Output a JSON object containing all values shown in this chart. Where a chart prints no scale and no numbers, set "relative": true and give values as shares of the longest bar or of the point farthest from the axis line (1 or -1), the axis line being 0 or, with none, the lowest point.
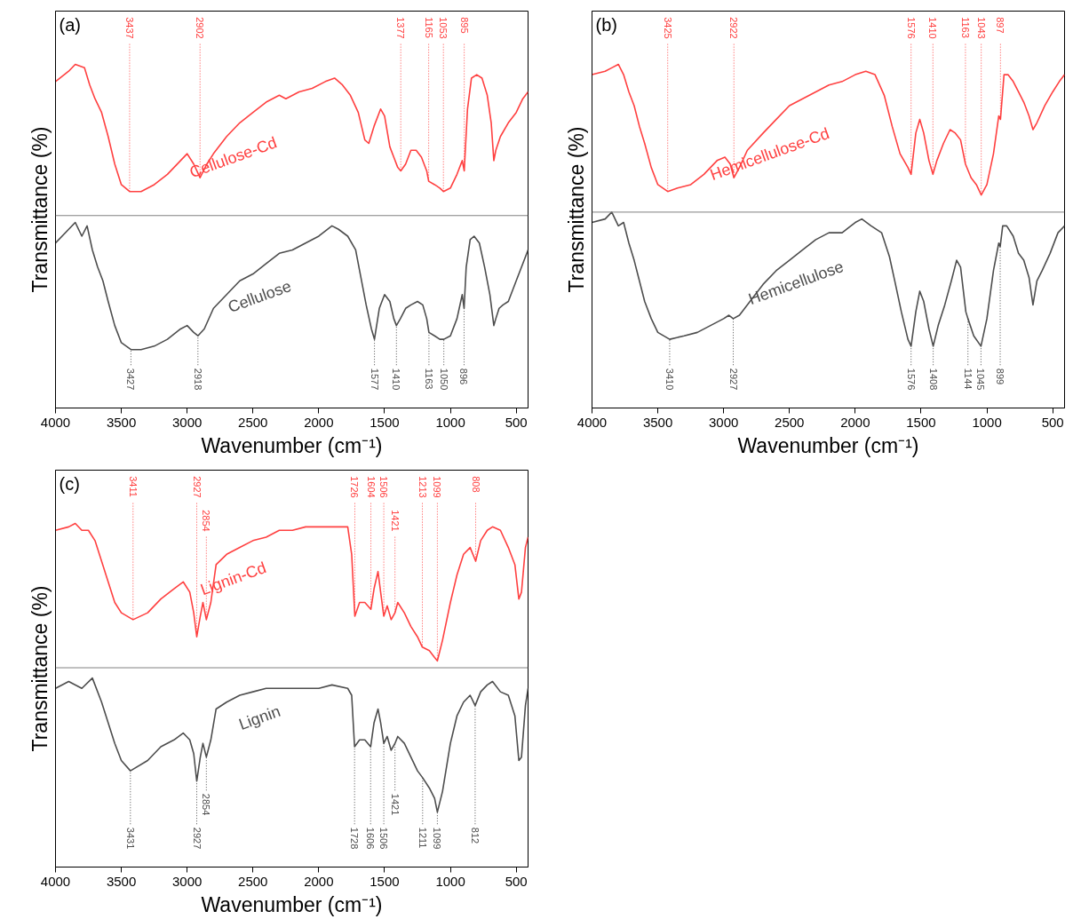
{
  "chart_data": [
    {
      "type": "line",
      "relative": true,
      "title": "(a)",
      "xlabel": "Wavenumber (cm⁻¹)",
      "ylabel": "Transmittance (%)",
      "xlim": [
        4000,
        410
      ],
      "xticks": [
        4000,
        3500,
        3000,
        2500,
        2000,
        1500,
        1000,
        500
      ],
      "series": [
        {
          "name": "Cellulose-Cd",
          "color": "#ff4040",
          "x": [
            4000,
            3900,
            3850,
            3780,
            3740,
            3700,
            3650,
            3600,
            3550,
            3500,
            3437,
            3350,
            3250,
            3150,
            3050,
            3000,
            2950,
            2902,
            2850,
            2800,
            2700,
            2600,
            2500,
            2400,
            2300,
            2250,
            2150,
            2050,
            1950,
            1880,
            1820,
            1760,
            1700,
            1650,
            1620,
            1580,
            1530,
            1500,
            1460,
            1430,
            1400,
            1377,
            1340,
            1300,
            1260,
            1220,
            1180,
            1165,
            1120,
            1080,
            1053,
            1000,
            950,
            910,
            895,
            870,
            840,
            800,
            760,
            720,
            690,
            670,
            655,
            620,
            560,
            500,
            450,
            410
          ],
          "values": [
            0.95,
            0.98,
            1.0,
            0.99,
            0.94,
            0.9,
            0.86,
            0.79,
            0.71,
            0.65,
            0.63,
            0.63,
            0.65,
            0.68,
            0.72,
            0.74,
            0.71,
            0.67,
            0.71,
            0.74,
            0.79,
            0.83,
            0.86,
            0.89,
            0.91,
            0.9,
            0.92,
            0.93,
            0.95,
            0.96,
            0.94,
            0.91,
            0.86,
            0.78,
            0.77,
            0.82,
            0.87,
            0.85,
            0.76,
            0.73,
            0.7,
            0.69,
            0.71,
            0.75,
            0.75,
            0.73,
            0.69,
            0.66,
            0.65,
            0.64,
            0.63,
            0.64,
            0.68,
            0.72,
            0.69,
            0.87,
            0.96,
            0.97,
            0.96,
            0.91,
            0.83,
            0.72,
            0.75,
            0.79,
            0.83,
            0.86,
            0.9,
            0.92
          ]
        },
        {
          "name": "Cellulose",
          "color": "#4d4d4d",
          "x": [
            4000,
            3900,
            3850,
            3800,
            3760,
            3720,
            3680,
            3640,
            3600,
            3550,
            3500,
            3427,
            3350,
            3250,
            3150,
            3050,
            3000,
            2950,
            2918,
            2870,
            2800,
            2700,
            2600,
            2500,
            2400,
            2300,
            2200,
            2100,
            2000,
            1900,
            1850,
            1780,
            1720,
            1680,
            1640,
            1600,
            1577,
            1540,
            1500,
            1460,
            1430,
            1410,
            1380,
            1340,
            1300,
            1250,
            1210,
            1180,
            1163,
            1120,
            1080,
            1050,
            1000,
            950,
            910,
            896,
            880,
            850,
            820,
            780,
            740,
            700,
            670,
            655,
            630,
            600,
            560,
            500,
            450,
            410
          ],
          "values": [
            0.48,
            0.52,
            0.54,
            0.5,
            0.53,
            0.46,
            0.41,
            0.37,
            0.31,
            0.24,
            0.19,
            0.17,
            0.17,
            0.18,
            0.2,
            0.23,
            0.24,
            0.22,
            0.21,
            0.23,
            0.29,
            0.33,
            0.37,
            0.39,
            0.42,
            0.45,
            0.46,
            0.48,
            0.5,
            0.53,
            0.52,
            0.5,
            0.46,
            0.38,
            0.3,
            0.23,
            0.2,
            0.29,
            0.33,
            0.31,
            0.26,
            0.24,
            0.26,
            0.29,
            0.3,
            0.31,
            0.3,
            0.26,
            0.22,
            0.21,
            0.2,
            0.2,
            0.21,
            0.26,
            0.33,
            0.29,
            0.41,
            0.49,
            0.5,
            0.48,
            0.41,
            0.33,
            0.24,
            0.26,
            0.29,
            0.3,
            0.31,
            0.37,
            0.42,
            0.46
          ]
        }
      ],
      "ref_lines": [
        {
          "axis": "y",
          "value": 0.56,
          "color": "#808080"
        }
      ],
      "annotations": [
        {
          "text": "3437",
          "x": 3437,
          "y": 0.63
        },
        {
          "text": "2902",
          "x": 2902,
          "y": 0.67
        },
        {
          "text": "1377",
          "x": 1377,
          "y": 0.69
        },
        {
          "text": "1165",
          "x": 1165,
          "y": 0.66
        },
        {
          "text": "1053",
          "x": 1053,
          "y": 0.63
        },
        {
          "text": "895",
          "x": 895,
          "y": 0.69
        },
        {
          "text": "3427",
          "x": 3427,
          "y": 0.17
        },
        {
          "text": "2918",
          "x": 2918,
          "y": 0.21
        },
        {
          "text": "1577",
          "x": 1577,
          "y": 0.2
        },
        {
          "text": "1410",
          "x": 1410,
          "y": 0.24
        },
        {
          "text": "1163",
          "x": 1163,
          "y": 0.22
        },
        {
          "text": "1050",
          "x": 1050,
          "y": 0.2
        },
        {
          "text": "896",
          "x": 896,
          "y": 0.29
        }
      ]
    },
    {
      "type": "line",
      "relative": true,
      "title": "(b)",
      "xlabel": "Wavenumber (cm⁻¹)",
      "ylabel": "Transmittance (%)",
      "xlim": [
        4000,
        410
      ],
      "xticks": [
        4000,
        3500,
        3000,
        2500,
        2000,
        1500,
        1000,
        500
      ],
      "series": [
        {
          "name": "Hemicellulose-Cd",
          "color": "#ff4040",
          "x": [
            4000,
            3900,
            3850,
            3800,
            3760,
            3720,
            3680,
            3640,
            3600,
            3550,
            3500,
            3425,
            3350,
            3250,
            3150,
            3050,
            2990,
            2950,
            2922,
            2880,
            2820,
            2700,
            2600,
            2500,
            2400,
            2300,
            2200,
            2100,
            2000,
            1920,
            1850,
            1780,
            1720,
            1660,
            1600,
            1576,
            1540,
            1510,
            1480,
            1440,
            1410,
            1380,
            1330,
            1280,
            1240,
            1200,
            1163,
            1120,
            1080,
            1043,
            1000,
            950,
            910,
            897,
            870,
            840,
            800,
            760,
            720,
            680,
            650,
            620,
            560,
            500,
            450,
            410
          ],
          "values": [
            0.97,
            0.98,
            0.99,
            1.0,
            0.97,
            0.92,
            0.88,
            0.82,
            0.77,
            0.7,
            0.65,
            0.63,
            0.64,
            0.65,
            0.68,
            0.72,
            0.73,
            0.71,
            0.67,
            0.7,
            0.75,
            0.8,
            0.84,
            0.88,
            0.9,
            0.92,
            0.94,
            0.95,
            0.97,
            0.98,
            0.97,
            0.91,
            0.82,
            0.74,
            0.7,
            0.68,
            0.8,
            0.84,
            0.8,
            0.72,
            0.68,
            0.72,
            0.77,
            0.81,
            0.8,
            0.78,
            0.71,
            0.67,
            0.65,
            0.62,
            0.65,
            0.74,
            0.85,
            0.84,
            0.97,
            0.97,
            0.95,
            0.92,
            0.89,
            0.85,
            0.81,
            0.83,
            0.88,
            0.92,
            0.95,
            0.97
          ]
        },
        {
          "name": "Hemicellulose",
          "color": "#4d4d4d",
          "x": [
            4000,
            3900,
            3850,
            3800,
            3760,
            3720,
            3680,
            3640,
            3600,
            3550,
            3500,
            3410,
            3300,
            3200,
            3100,
            3000,
            2960,
            2927,
            2880,
            2800,
            2700,
            2600,
            2500,
            2400,
            2300,
            2200,
            2100,
            2000,
            1950,
            1880,
            1800,
            1740,
            1700,
            1650,
            1600,
            1576,
            1540,
            1510,
            1480,
            1440,
            1408,
            1370,
            1320,
            1270,
            1230,
            1200,
            1160,
            1144,
            1100,
            1045,
            1000,
            950,
            910,
            899,
            880,
            850,
            800,
            760,
            720,
            680,
            650,
            620,
            580,
            520,
            460,
            410
          ],
          "values": [
            0.54,
            0.55,
            0.57,
            0.53,
            0.54,
            0.48,
            0.43,
            0.37,
            0.31,
            0.26,
            0.22,
            0.2,
            0.21,
            0.22,
            0.24,
            0.26,
            0.27,
            0.26,
            0.27,
            0.31,
            0.36,
            0.4,
            0.43,
            0.46,
            0.49,
            0.51,
            0.51,
            0.54,
            0.55,
            0.53,
            0.51,
            0.44,
            0.37,
            0.28,
            0.2,
            0.18,
            0.28,
            0.34,
            0.31,
            0.23,
            0.18,
            0.24,
            0.3,
            0.37,
            0.43,
            0.41,
            0.28,
            0.26,
            0.21,
            0.18,
            0.26,
            0.4,
            0.48,
            0.47,
            0.53,
            0.53,
            0.5,
            0.45,
            0.43,
            0.38,
            0.3,
            0.37,
            0.4,
            0.45,
            0.51,
            0.53
          ]
        }
      ],
      "ref_lines": [
        {
          "axis": "y",
          "value": 0.57,
          "color": "#808080"
        }
      ],
      "annotations": [
        {
          "text": "3425",
          "x": 3425,
          "y": 0.63
        },
        {
          "text": "2922",
          "x": 2922,
          "y": 0.67
        },
        {
          "text": "1576",
          "x": 1576,
          "y": 0.68
        },
        {
          "text": "1410",
          "x": 1410,
          "y": 0.68
        },
        {
          "text": "1163",
          "x": 1163,
          "y": 0.71
        },
        {
          "text": "1043",
          "x": 1043,
          "y": 0.62
        },
        {
          "text": "897",
          "x": 897,
          "y": 0.84
        },
        {
          "text": "3410",
          "x": 3410,
          "y": 0.2
        },
        {
          "text": "2927",
          "x": 2927,
          "y": 0.26
        },
        {
          "text": "1576",
          "x": 1576,
          "y": 0.18
        },
        {
          "text": "1408",
          "x": 1408,
          "y": 0.18
        },
        {
          "text": "1144",
          "x": 1144,
          "y": 0.26
        },
        {
          "text": "1045",
          "x": 1045,
          "y": 0.18
        },
        {
          "text": "899",
          "x": 899,
          "y": 0.47
        }
      ]
    },
    {
      "type": "line",
      "relative": true,
      "title": "(c)",
      "xlabel": "Wavenumber (cm⁻¹)",
      "ylabel": "Transmittance (%)",
      "xlim": [
        4000,
        410
      ],
      "xticks": [
        4000,
        3500,
        3000,
        2500,
        2000,
        1500,
        1000,
        500
      ],
      "series": [
        {
          "name": "Lignin-Cd",
          "color": "#ff4040",
          "x": [
            4000,
            3900,
            3850,
            3800,
            3750,
            3700,
            3650,
            3600,
            3550,
            3500,
            3411,
            3300,
            3200,
            3100,
            3030,
            2980,
            2950,
            2927,
            2900,
            2880,
            2854,
            2820,
            2780,
            2700,
            2600,
            2500,
            2400,
            2300,
            2200,
            2100,
            2000,
            1900,
            1780,
            1750,
            1726,
            1690,
            1650,
            1604,
            1580,
            1550,
            1530,
            1506,
            1480,
            1450,
            1421,
            1400,
            1350,
            1300,
            1250,
            1213,
            1160,
            1120,
            1099,
            1060,
            1000,
            950,
            900,
            850,
            808,
            770,
            720,
            680,
            620,
            560,
            510,
            480,
            460,
            430,
            410
          ],
          "values": [
            0.98,
            0.99,
            1.0,
            0.98,
            0.98,
            0.95,
            0.89,
            0.83,
            0.77,
            0.74,
            0.72,
            0.74,
            0.78,
            0.81,
            0.83,
            0.8,
            0.74,
            0.67,
            0.73,
            0.77,
            0.72,
            0.77,
            0.88,
            0.91,
            0.93,
            0.95,
            0.96,
            0.98,
            0.98,
            0.99,
            0.99,
            0.99,
            0.99,
            0.91,
            0.73,
            0.77,
            0.77,
            0.75,
            0.81,
            0.86,
            0.8,
            0.73,
            0.76,
            0.72,
            0.74,
            0.77,
            0.74,
            0.7,
            0.67,
            0.64,
            0.63,
            0.61,
            0.6,
            0.66,
            0.77,
            0.85,
            0.91,
            0.93,
            0.89,
            0.95,
            0.98,
            0.99,
            0.98,
            0.93,
            0.88,
            0.78,
            0.8,
            0.93,
            0.96
          ]
        },
        {
          "name": "Lignin",
          "color": "#4d4d4d",
          "x": [
            4000,
            3900,
            3800,
            3720,
            3650,
            3600,
            3550,
            3500,
            3431,
            3300,
            3200,
            3100,
            3030,
            2980,
            2950,
            2927,
            2900,
            2880,
            2854,
            2820,
            2780,
            2700,
            2600,
            2500,
            2400,
            2300,
            2200,
            2100,
            2000,
            1900,
            1780,
            1750,
            1728,
            1690,
            1650,
            1606,
            1580,
            1550,
            1530,
            1506,
            1480,
            1450,
            1421,
            1400,
            1350,
            1300,
            1250,
            1211,
            1160,
            1120,
            1099,
            1060,
            1000,
            950,
            900,
            850,
            812,
            770,
            720,
            680,
            620,
            560,
            510,
            480,
            460,
            430,
            410
          ],
          "values": [
            0.52,
            0.54,
            0.52,
            0.55,
            0.48,
            0.42,
            0.36,
            0.31,
            0.28,
            0.31,
            0.35,
            0.37,
            0.39,
            0.37,
            0.33,
            0.25,
            0.32,
            0.36,
            0.32,
            0.37,
            0.46,
            0.48,
            0.5,
            0.51,
            0.52,
            0.52,
            0.52,
            0.52,
            0.52,
            0.53,
            0.52,
            0.5,
            0.35,
            0.37,
            0.37,
            0.35,
            0.42,
            0.46,
            0.42,
            0.36,
            0.38,
            0.34,
            0.36,
            0.38,
            0.36,
            0.32,
            0.28,
            0.26,
            0.23,
            0.2,
            0.16,
            0.22,
            0.36,
            0.44,
            0.48,
            0.5,
            0.47,
            0.51,
            0.53,
            0.54,
            0.51,
            0.5,
            0.44,
            0.31,
            0.32,
            0.47,
            0.52
          ]
        }
      ],
      "ref_lines": [
        {
          "axis": "y",
          "value": 0.58,
          "color": "#808080"
        }
      ],
      "annotations": [
        {
          "text": "3411",
          "x": 3411,
          "y": 0.72
        },
        {
          "text": "2927",
          "x": 2927,
          "y": 0.67
        },
        {
          "text": "2854",
          "x": 2854,
          "y": 0.72
        },
        {
          "text": "1726",
          "x": 1726,
          "y": 0.73
        },
        {
          "text": "1604",
          "x": 1604,
          "y": 0.75
        },
        {
          "text": "1506",
          "x": 1506,
          "y": 0.73
        },
        {
          "text": "1421",
          "x": 1421,
          "y": 0.74
        },
        {
          "text": "1213",
          "x": 1213,
          "y": 0.64
        },
        {
          "text": "1099",
          "x": 1099,
          "y": 0.6
        },
        {
          "text": "808",
          "x": 808,
          "y": 0.89
        },
        {
          "text": "3431",
          "x": 3431,
          "y": 0.28
        },
        {
          "text": "2927",
          "x": 2927,
          "y": 0.25
        },
        {
          "text": "2854",
          "x": 2854,
          "y": 0.32
        },
        {
          "text": "1728",
          "x": 1728,
          "y": 0.35
        },
        {
          "text": "1606",
          "x": 1606,
          "y": 0.35
        },
        {
          "text": "1506",
          "x": 1506,
          "y": 0.36
        },
        {
          "text": "1421",
          "x": 1421,
          "y": 0.36
        },
        {
          "text": "1211",
          "x": 1211,
          "y": 0.26
        },
        {
          "text": "1099",
          "x": 1099,
          "y": 0.16
        },
        {
          "text": "812",
          "x": 812,
          "y": 0.47
        }
      ]
    }
  ]
}
